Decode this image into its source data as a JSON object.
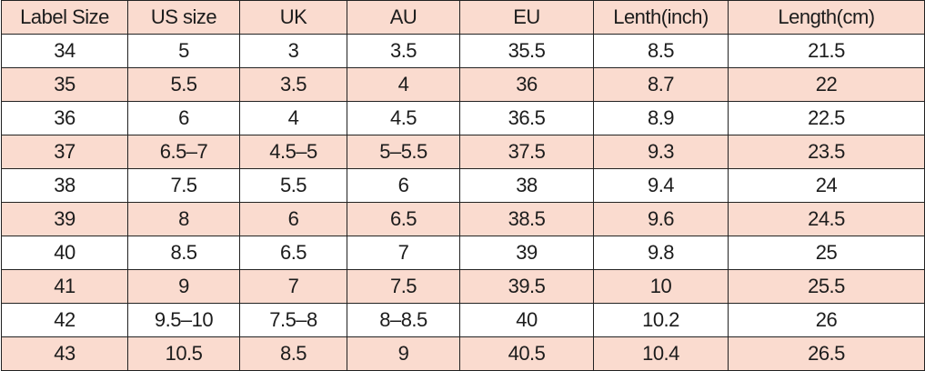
{
  "table": {
    "header": [
      "Label Size",
      "US size",
      "UK",
      "AU",
      "EU",
      "Lenth(inch)",
      "Length(cm)"
    ],
    "rows": [
      [
        "34",
        "5",
        "3",
        "3.5",
        "35.5",
        "8.5",
        "21.5"
      ],
      [
        "35",
        "5.5",
        "3.5",
        "4",
        "36",
        "8.7",
        "22"
      ],
      [
        "36",
        "6",
        "4",
        "4.5",
        "36.5",
        "8.9",
        "22.5"
      ],
      [
        "37",
        "6.5–7",
        "4.5–5",
        "5–5.5",
        "37.5",
        "9.3",
        "23.5"
      ],
      [
        "38",
        "7.5",
        "5.5",
        "6",
        "38",
        "9.4",
        "24"
      ],
      [
        "39",
        "8",
        "6",
        "6.5",
        "38.5",
        "9.6",
        "24.5"
      ],
      [
        "40",
        "8.5",
        "6.5",
        "7",
        "39",
        "9.8",
        "25"
      ],
      [
        "41",
        "9",
        "7",
        "7.5",
        "39.5",
        "10",
        "25.5"
      ],
      [
        "42",
        "9.5–10",
        "7.5–8",
        "8–8.5",
        "40",
        "10.2",
        "26"
      ],
      [
        "43",
        "10.5",
        "8.5",
        "9",
        "40.5",
        "10.4",
        "26.5"
      ]
    ]
  }
}
